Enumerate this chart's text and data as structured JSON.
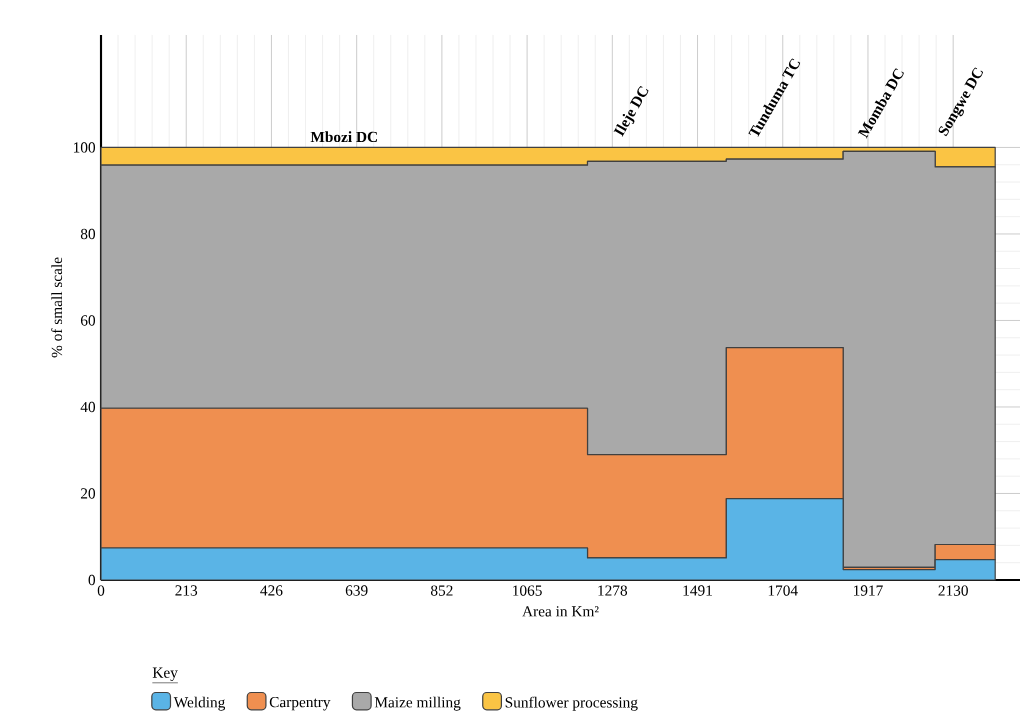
{
  "chart_data": {
    "type": "area",
    "stacked": true,
    "xlabel": "Area in Km²",
    "ylabel": "% of small scale",
    "legend_title": "Key",
    "legend": "bottom",
    "x": [
      0,
      1216,
      1216,
      1563,
      1563,
      1855,
      1855,
      2085,
      2085,
      2235
    ],
    "series": [
      {
        "name": "Welding",
        "color": "#5ab4e6",
        "values": [
          7.4,
          7.4,
          5.1,
          5.1,
          18.8,
          18.8,
          2.4,
          2.4,
          4.7,
          4.7
        ]
      },
      {
        "name": "Carpentry",
        "color": "#ef8f50",
        "values": [
          32.3,
          32.3,
          23.9,
          23.9,
          34.9,
          34.9,
          0.5,
          0.5,
          3.5,
          3.5
        ]
      },
      {
        "name": "Maize milling",
        "color": "#a9a9a9",
        "values": [
          56.2,
          56.2,
          67.8,
          67.8,
          43.6,
          43.6,
          96.2,
          96.2,
          87.3,
          87.3
        ]
      },
      {
        "name": "Sunflower processing",
        "color": "#fac444",
        "values": [
          4.1,
          4.1,
          3.2,
          3.2,
          2.7,
          2.7,
          0.9,
          0.9,
          4.5,
          4.5
        ]
      }
    ],
    "annotations": [
      "Mbozi DC",
      "Ileje DC",
      "Tunduma TC",
      "Momba DC",
      "Songwe DC"
    ],
    "xlim": [
      0,
      2297
    ],
    "ylim": [
      0,
      126
    ],
    "xticks": [
      0,
      213,
      426,
      639,
      852,
      1065,
      1278,
      1491,
      1704,
      1917,
      2130
    ],
    "yticks": [
      0,
      20,
      40,
      60,
      80,
      100
    ],
    "grid": true
  }
}
